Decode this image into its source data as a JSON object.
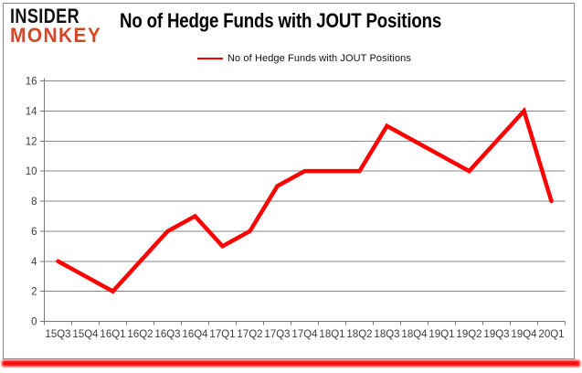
{
  "logo": {
    "line1": "INSIDER",
    "line2": "MONKEY"
  },
  "header": {
    "title": "No of Hedge Funds with JOUT Positions"
  },
  "colors": {
    "line_red": "#FF0000",
    "logo_red": "#D2492A",
    "logo_black": "#111111",
    "grid": "#878787",
    "axis": "#787878",
    "tick_text": "#3D3D3D",
    "bottom_glow": "#FA0A0A"
  },
  "chart_data": {
    "type": "line",
    "title": "No of Hedge Funds with JOUT Positions",
    "legend_label": "No of Hedge Funds with JOUT Positions",
    "legend_position": "top-center",
    "categories": [
      "15Q3",
      "15Q4",
      "16Q1",
      "16Q2",
      "16Q3",
      "16Q4",
      "17Q1",
      "17Q2",
      "17Q3",
      "17Q4",
      "18Q1",
      "18Q2",
      "18Q3",
      "18Q4",
      "19Q1",
      "19Q2",
      "19Q3",
      "19Q4",
      "20Q1"
    ],
    "values": [
      4,
      3,
      2,
      4,
      6,
      7,
      5,
      6,
      9,
      10,
      10,
      10,
      13,
      12,
      11,
      10,
      12,
      14,
      8
    ],
    "xlabel": "",
    "ylabel": "",
    "ylim": [
      0,
      16
    ],
    "ytick_step": 2,
    "grid": true,
    "line_color": "#FF0000"
  }
}
